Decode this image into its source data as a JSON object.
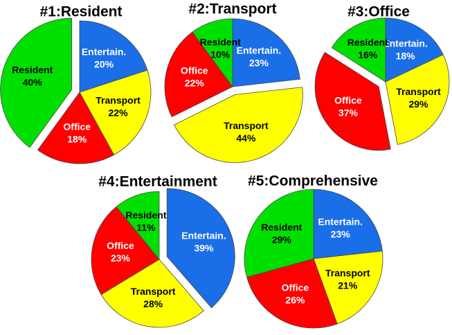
{
  "chart_data": [
    {
      "type": "pie",
      "title": "#1:Resident",
      "categories": [
        "Entertain.",
        "Transport",
        "Office",
        "Resident"
      ],
      "values": [
        20,
        22,
        18,
        40
      ],
      "value_labels": [
        "20%",
        "22%",
        "18%",
        "40%"
      ],
      "colors": [
        "#1a6ee8",
        "#ffff00",
        "#ff0000",
        "#00e000"
      ],
      "explode": [
        false,
        false,
        false,
        true
      ]
    },
    {
      "type": "pie",
      "title": "#2:Transport",
      "categories": [
        "Entertain.",
        "Transport",
        "Office",
        "Resident"
      ],
      "values": [
        23,
        44,
        22,
        10
      ],
      "value_labels": [
        "23%",
        "44%",
        "22%",
        "10%"
      ],
      "colors": [
        "#1a6ee8",
        "#ffff00",
        "#ff0000",
        "#00e000"
      ],
      "explode": [
        false,
        true,
        false,
        false
      ]
    },
    {
      "type": "pie",
      "title": "#3:Office",
      "categories": [
        "Entertain.",
        "Transport",
        "Office",
        "Resident"
      ],
      "values": [
        18,
        29,
        37,
        16
      ],
      "value_labels": [
        "18%",
        "29%",
        "37%",
        "16%"
      ],
      "colors": [
        "#1a6ee8",
        "#ffff00",
        "#ff0000",
        "#00e000"
      ],
      "explode": [
        false,
        false,
        true,
        false
      ]
    },
    {
      "type": "pie",
      "title": "#4:Entertainment",
      "categories": [
        "Entertain.",
        "Transport",
        "Office",
        "Resident"
      ],
      "values": [
        39,
        28,
        23,
        11
      ],
      "value_labels": [
        "39%",
        "28%",
        "23%",
        "11%"
      ],
      "colors": [
        "#1a6ee8",
        "#ffff00",
        "#ff0000",
        "#00e000"
      ],
      "explode": [
        true,
        false,
        false,
        false
      ]
    },
    {
      "type": "pie",
      "title": "#5:Comprehensive",
      "categories": [
        "Entertain.",
        "Transport",
        "Office",
        "Resident"
      ],
      "values": [
        23,
        21,
        26,
        29
      ],
      "value_labels": [
        "23%",
        "21%",
        "26%",
        "29%"
      ],
      "colors": [
        "#1a6ee8",
        "#ffff00",
        "#ff0000",
        "#00e000"
      ],
      "explode": [
        false,
        false,
        false,
        false
      ]
    }
  ]
}
